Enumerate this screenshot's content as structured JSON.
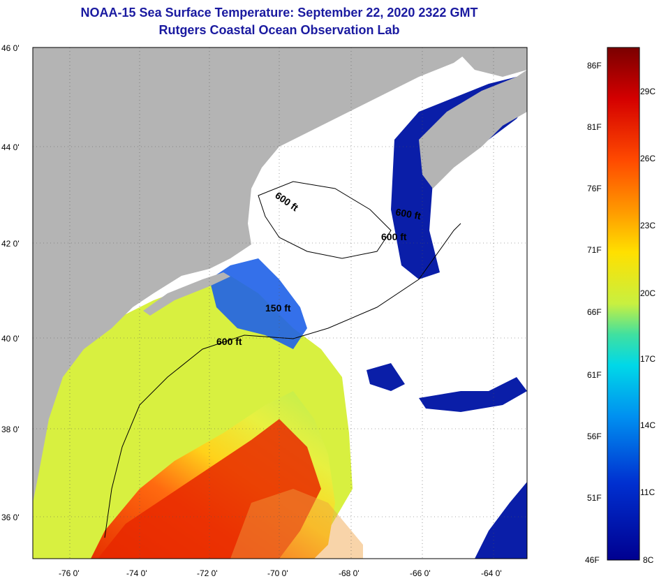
{
  "header": {
    "title": "NOAA-15 Sea Surface Temperature:  September 22, 2020 2322 GMT",
    "subtitle": "Rutgers Coastal Ocean Observation Lab"
  },
  "axes": {
    "latitude_ticks": [
      "46 0'",
      "44 0'",
      "42 0'",
      "40 0'",
      "38 0'",
      "36 0'"
    ],
    "longitude_ticks": [
      "-76 0'",
      "-74 0'",
      "-72 0'",
      "-70 0'",
      "-68 0'",
      "-66 0'",
      "-64 0'"
    ]
  },
  "contours": {
    "labels": [
      "600 ft",
      "600 ft",
      "600 ft",
      "150 ft",
      "600 ft"
    ]
  },
  "colorbar": {
    "fahrenheit": [
      "86F",
      "81F",
      "76F",
      "71F",
      "66F",
      "61F",
      "56F",
      "51F",
      "46F"
    ],
    "celsius": [
      "29C",
      "26C",
      "23C",
      "20C",
      "17C",
      "14C",
      "11C",
      "8C"
    ],
    "colors": [
      "#7a0000",
      "#d40000",
      "#ff4a00",
      "#ff9a00",
      "#ffe000",
      "#c8f040",
      "#40e0a0",
      "#00d8e8",
      "#0090f0",
      "#0030d0",
      "#000090"
    ]
  },
  "palette": {
    "land": "#b4b4b4",
    "cloud": "#ffffff",
    "cold": "#0a1ea8",
    "title": "#1a1aa0"
  }
}
